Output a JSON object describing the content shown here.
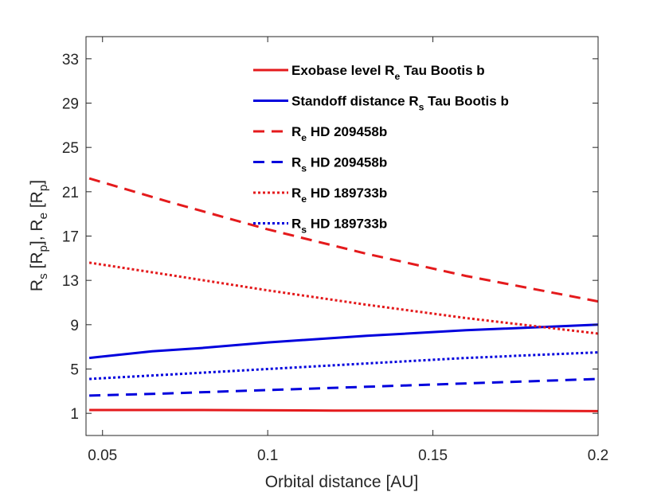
{
  "chart_data": {
    "type": "line",
    "title": "",
    "xlabel": "Orbital distance [AU]",
    "ylabel": {
      "parts": [
        {
          "text": "R"
        },
        {
          "text": "s",
          "sub": true
        },
        {
          "text": " [R"
        },
        {
          "text": "p",
          "sub": true
        },
        {
          "text": "], R"
        },
        {
          "text": "e",
          "sub": true
        },
        {
          "text": " [R"
        },
        {
          "text": "p",
          "sub": true
        },
        {
          "text": "]"
        }
      ]
    },
    "xlim": [
      0.045,
      0.2
    ],
    "ylim": [
      -1,
      35
    ],
    "xticks": [
      0.05,
      0.1,
      0.15,
      0.2
    ],
    "xtick_labels": [
      "0.05",
      "0.1",
      "0.15",
      "0.2"
    ],
    "yticks": [
      1,
      5,
      9,
      13,
      17,
      21,
      25,
      29,
      33
    ],
    "ytick_labels": [
      "1",
      "5",
      "9",
      "13",
      "17",
      "21",
      "25",
      "29",
      "33"
    ],
    "grid": false,
    "legend_position": "top-right",
    "series": [
      {
        "name": "Exobase level R_e Tau Bootis b",
        "label_parts": [
          {
            "text": "Exobase level R"
          },
          {
            "text": "e",
            "sub": true
          },
          {
            "text": " Tau Bootis b"
          }
        ],
        "color": "#e41a1c",
        "style": "solid",
        "x": [
          0.046,
          0.08,
          0.12,
          0.16,
          0.2
        ],
        "y": [
          1.3,
          1.3,
          1.25,
          1.25,
          1.2
        ]
      },
      {
        "name": "Standoff distance R_s Tau Bootis b",
        "label_parts": [
          {
            "text": "Standoff distance R"
          },
          {
            "text": "s",
            "sub": true
          },
          {
            "text": " Tau Bootis b"
          }
        ],
        "color": "#0000dd",
        "style": "solid",
        "x": [
          0.046,
          0.065,
          0.08,
          0.1,
          0.13,
          0.16,
          0.2
        ],
        "y": [
          6.0,
          6.6,
          6.9,
          7.4,
          8.0,
          8.5,
          9.0
        ]
      },
      {
        "name": "R_e HD 209458b",
        "label_parts": [
          {
            "text": "R"
          },
          {
            "text": "e",
            "sub": true
          },
          {
            "text": " HD 209458b"
          }
        ],
        "color": "#e41a1c",
        "style": "dashed",
        "x": [
          0.046,
          0.07,
          0.1,
          0.13,
          0.16,
          0.2
        ],
        "y": [
          22.2,
          20.1,
          17.6,
          15.4,
          13.4,
          11.1
        ]
      },
      {
        "name": "R_s HD 209458b",
        "label_parts": [
          {
            "text": "R"
          },
          {
            "text": "s",
            "sub": true
          },
          {
            "text": " HD 209458b"
          }
        ],
        "color": "#0000dd",
        "style": "dashed",
        "x": [
          0.046,
          0.07,
          0.1,
          0.13,
          0.16,
          0.2
        ],
        "y": [
          2.6,
          2.8,
          3.1,
          3.4,
          3.7,
          4.1
        ]
      },
      {
        "name": "R_e HD 189733b",
        "label_parts": [
          {
            "text": "R"
          },
          {
            "text": "e",
            "sub": true
          },
          {
            "text": " HD 189733b"
          }
        ],
        "color": "#e41a1c",
        "style": "dotted",
        "x": [
          0.046,
          0.07,
          0.1,
          0.13,
          0.16,
          0.2
        ],
        "y": [
          14.6,
          13.5,
          12.1,
          10.8,
          9.6,
          8.2
        ]
      },
      {
        "name": "R_s HD 189733b",
        "label_parts": [
          {
            "text": "R"
          },
          {
            "text": "s",
            "sub": true
          },
          {
            "text": " HD 189733b"
          }
        ],
        "color": "#0000dd",
        "style": "dotted",
        "x": [
          0.046,
          0.07,
          0.1,
          0.13,
          0.16,
          0.2
        ],
        "y": [
          4.1,
          4.5,
          5.0,
          5.5,
          6.0,
          6.5
        ]
      }
    ]
  }
}
